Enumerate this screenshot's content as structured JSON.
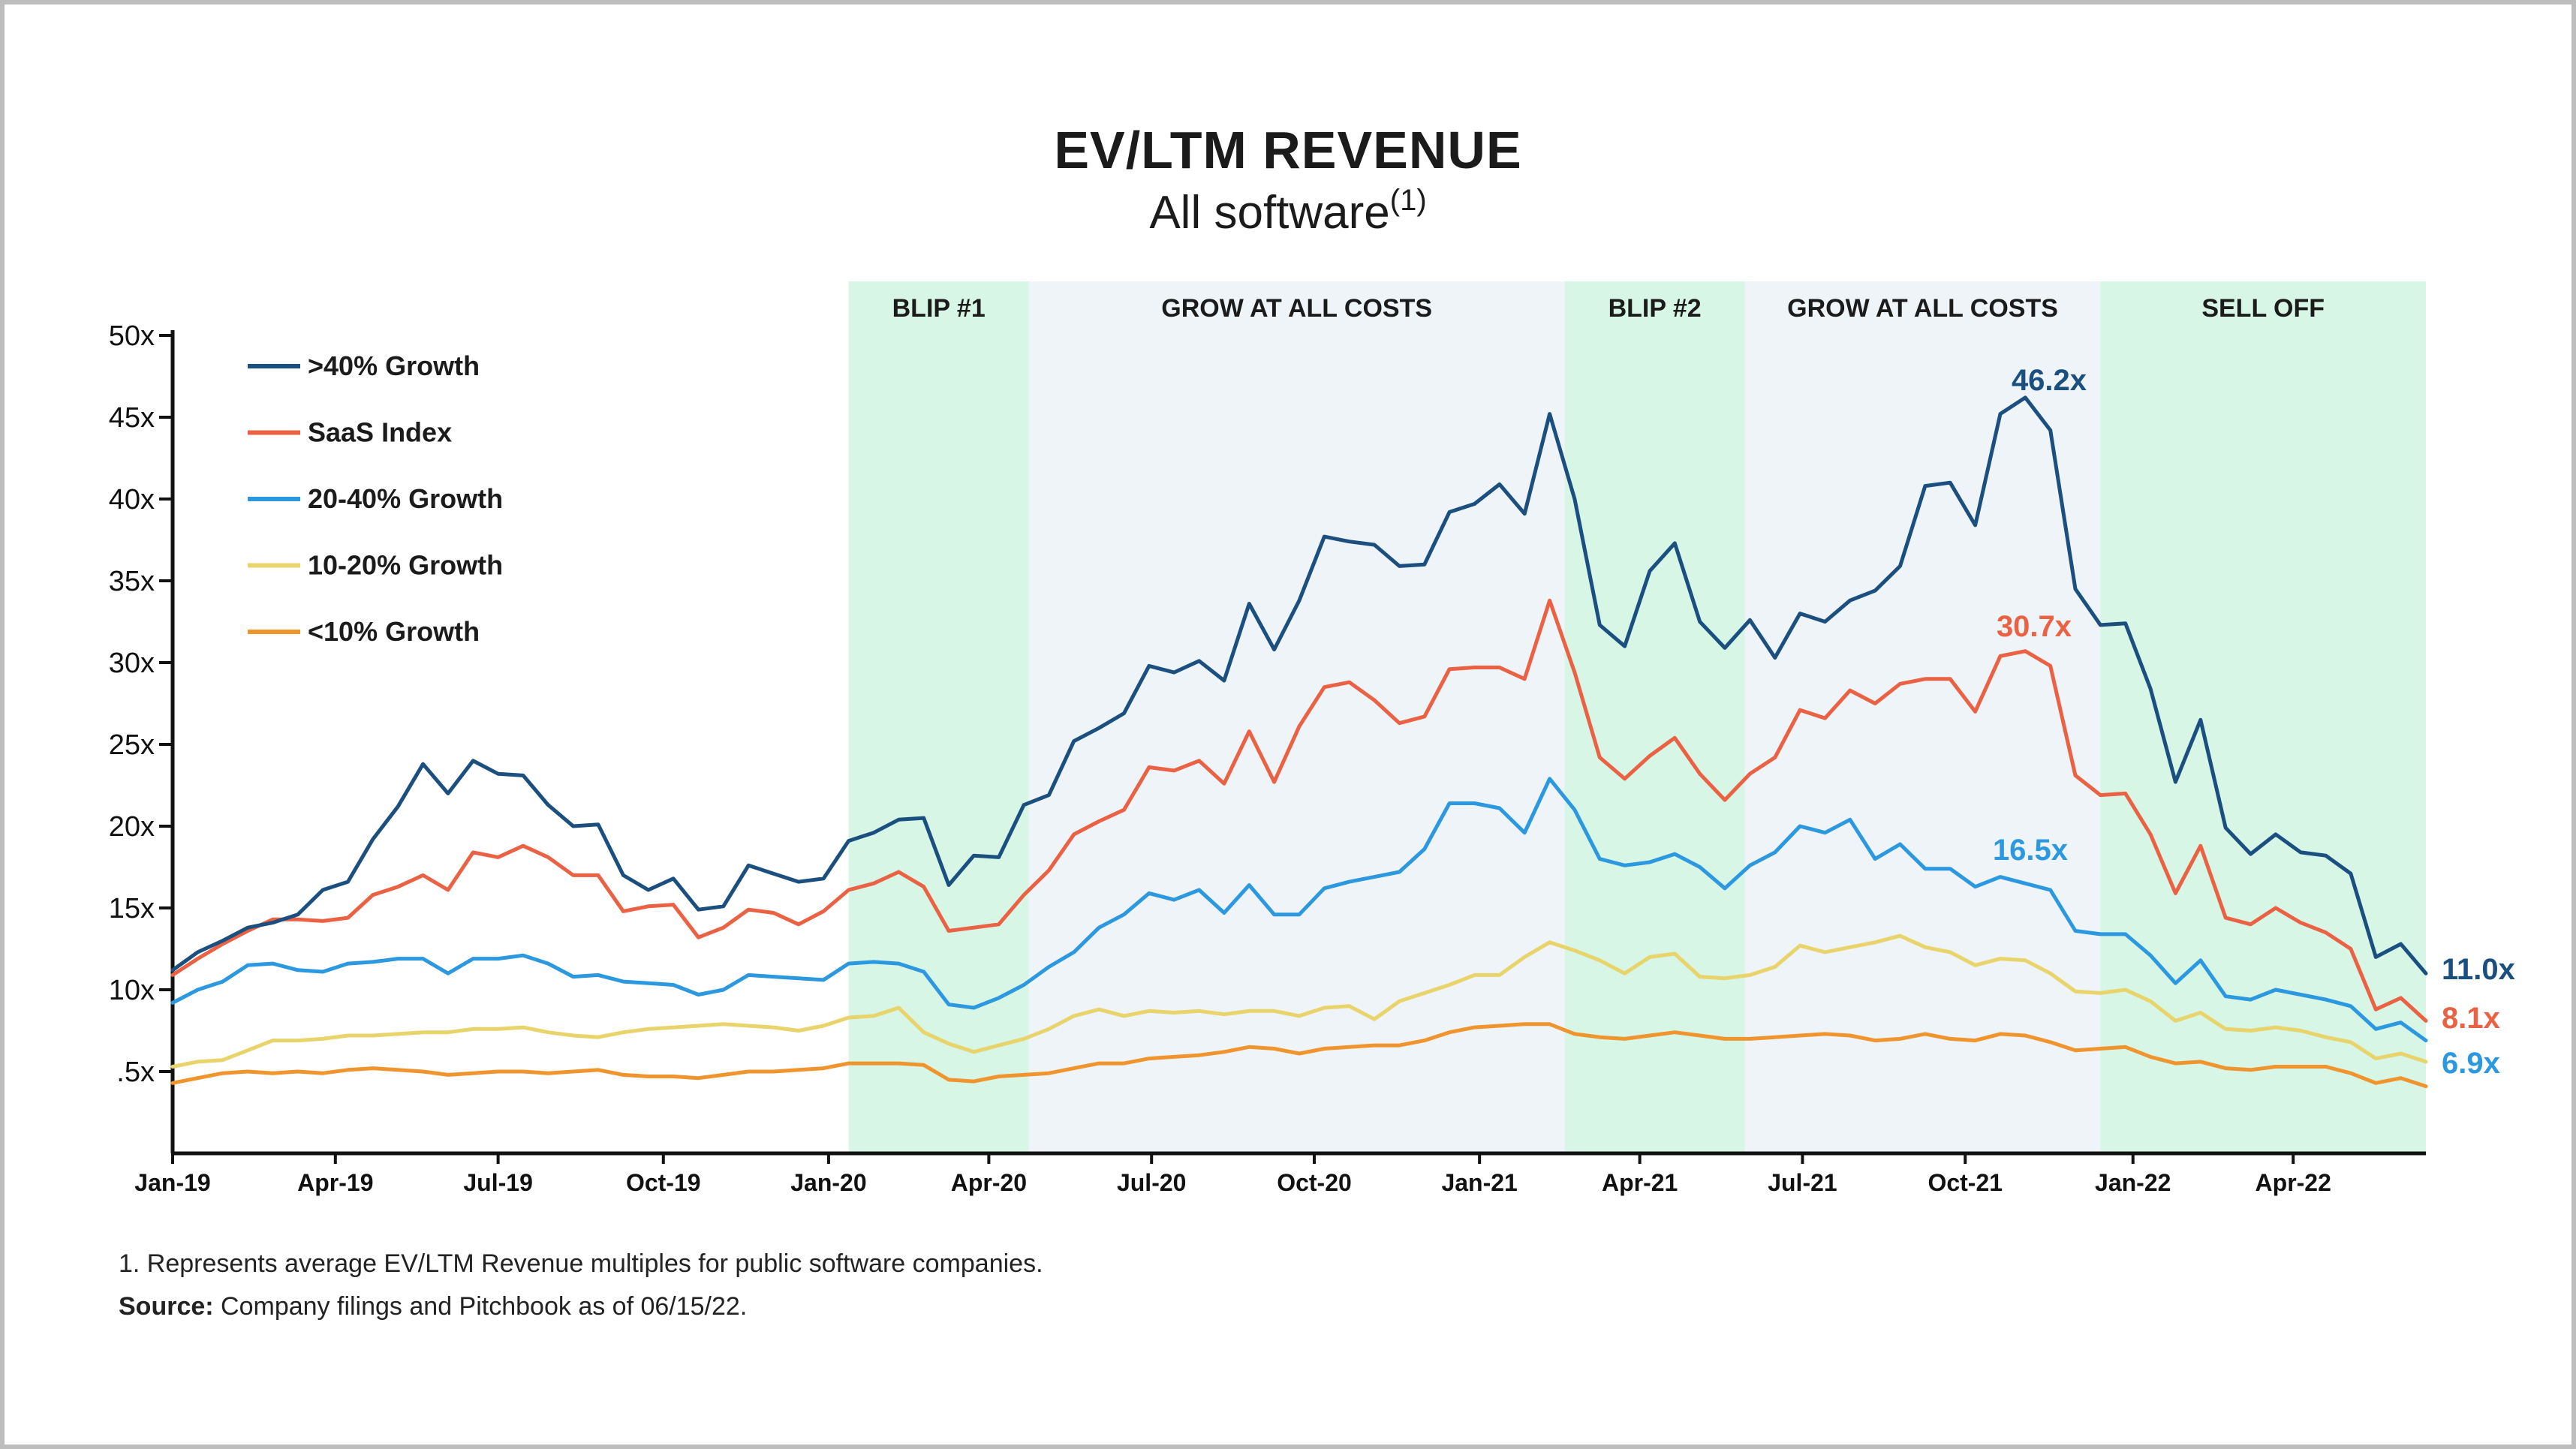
{
  "title": "EV/LTM REVENUE",
  "subtitle": "All software",
  "subtitle_sup": "(1)",
  "footnote": "1. Represents average EV/LTM Revenue multiples for public software companies.",
  "source_label": "Source:",
  "source_text": "Company filings and Pitchbook as of 06/15/22.",
  "chart_data": {
    "type": "line",
    "title": "EV/LTM REVENUE",
    "subtitle": "All software",
    "ylim": [
      0,
      50
    ],
    "y_ticks": [
      "50x",
      "45x",
      "40x",
      "35x",
      "30x",
      "25x",
      "20x",
      "15x",
      "10x",
      ".5x"
    ],
    "y_tick_values": [
      50,
      45,
      40,
      35,
      30,
      25,
      20,
      15,
      10,
      5
    ],
    "x_start": "2019-01-04",
    "x_interval": "weekly, every other week",
    "x_ticks": [
      {
        "label": "Jan-19",
        "index": 0
      },
      {
        "label": "Apr-19",
        "index": 6.5
      },
      {
        "label": "Jul-19",
        "index": 13
      },
      {
        "label": "Oct-19",
        "index": 19.6
      },
      {
        "label": "Jan-20",
        "index": 26.2
      },
      {
        "label": "Apr-20",
        "index": 32.6
      },
      {
        "label": "Jul-20",
        "index": 39.1
      },
      {
        "label": "Oct-20",
        "index": 45.6
      },
      {
        "label": "Jan-21",
        "index": 52.2
      },
      {
        "label": "Apr-21",
        "index": 58.6
      },
      {
        "label": "Jul-21",
        "index": 65.1
      },
      {
        "label": "Oct-21",
        "index": 71.6
      },
      {
        "label": "Jan-22",
        "index": 78.3
      },
      {
        "label": "Apr-22",
        "index": 84.7
      }
    ],
    "phases": [
      {
        "label": "BLIP #1",
        "start": 27.0,
        "end": 34.2,
        "color": "#d7f6e6"
      },
      {
        "label": "GROW AT ALL COSTS",
        "start": 34.2,
        "end": 55.6,
        "color": "#eef4f8"
      },
      {
        "label": "BLIP #2",
        "start": 55.6,
        "end": 62.8,
        "color": "#d7f6e6"
      },
      {
        "label": "GROW AT ALL COSTS",
        "start": 62.8,
        "end": 77.0,
        "color": "#eef4f8"
      },
      {
        "label": "SELL OFF",
        "start": 77.0,
        "end": 90.0,
        "color": "#d7f6e6"
      }
    ],
    "grid": false,
    "legend_position": "top-left",
    "series": [
      {
        "name": ">40% Growth",
        "color": "#1a4f7f",
        "end_label": "11.0x",
        "peak_label": "46.2x",
        "values": [
          11.2,
          12.3,
          13.0,
          13.8,
          14.1,
          14.6,
          16.1,
          16.6,
          19.2,
          21.2,
          23.8,
          22.0,
          24.0,
          23.2,
          23.1,
          21.3,
          20.0,
          20.1,
          17.0,
          16.1,
          16.8,
          14.9,
          15.1,
          17.6,
          17.1,
          16.6,
          16.8,
          19.1,
          19.6,
          20.4,
          20.5,
          16.4,
          18.2,
          18.1,
          21.3,
          21.9,
          25.2,
          26.0,
          26.9,
          29.8,
          29.4,
          30.1,
          28.9,
          33.6,
          30.8,
          33.8,
          37.7,
          37.4,
          37.2,
          35.9,
          36.0,
          39.2,
          39.7,
          40.9,
          39.1,
          45.2,
          40.0,
          32.3,
          31.0,
          35.6,
          37.3,
          32.5,
          30.9,
          32.6,
          30.3,
          33.0,
          32.5,
          33.8,
          34.4,
          35.9,
          40.8,
          41.0,
          38.4,
          45.2,
          46.2,
          44.2,
          34.5,
          32.3,
          32.4,
          28.4,
          22.7,
          26.5,
          19.9,
          18.3,
          19.5,
          18.4,
          18.2,
          17.1,
          12.0,
          12.8,
          11.0
        ]
      },
      {
        "name": "SaaS Index",
        "color": "#ea6243",
        "end_label": "8.1x",
        "peak_label": "30.7x",
        "values": [
          10.9,
          11.9,
          12.8,
          13.6,
          14.3,
          14.3,
          14.2,
          14.4,
          15.8,
          16.3,
          17.0,
          16.1,
          18.4,
          18.1,
          18.8,
          18.1,
          17.0,
          17.0,
          14.8,
          15.1,
          15.2,
          13.2,
          13.8,
          14.9,
          14.7,
          14.0,
          14.8,
          16.1,
          16.5,
          17.2,
          16.3,
          13.6,
          13.8,
          14.0,
          15.8,
          17.3,
          19.5,
          20.3,
          21.0,
          23.6,
          23.4,
          24.0,
          22.6,
          25.8,
          22.7,
          26.1,
          28.5,
          28.8,
          27.7,
          26.3,
          26.7,
          29.6,
          29.7,
          29.7,
          29.0,
          33.8,
          29.4,
          24.2,
          22.9,
          24.3,
          25.4,
          23.2,
          21.6,
          23.2,
          24.2,
          27.1,
          26.6,
          28.3,
          27.5,
          28.7,
          29.0,
          29.0,
          27.0,
          30.4,
          30.7,
          29.8,
          23.1,
          21.9,
          22.0,
          19.5,
          15.9,
          18.8,
          14.4,
          14.0,
          15.0,
          14.1,
          13.5,
          12.5,
          8.8,
          9.5,
          8.1
        ]
      },
      {
        "name": "20-40% Growth",
        "color": "#2c98e0",
        "end_label": "6.9x",
        "mid_label": "16.5x",
        "values": [
          9.2,
          10.0,
          10.5,
          11.5,
          11.6,
          11.2,
          11.1,
          11.6,
          11.7,
          11.9,
          11.9,
          11.0,
          11.9,
          11.9,
          12.1,
          11.6,
          10.8,
          10.9,
          10.5,
          10.4,
          10.3,
          9.7,
          10.0,
          10.9,
          10.8,
          10.7,
          10.6,
          11.6,
          11.7,
          11.6,
          11.1,
          9.1,
          8.9,
          9.5,
          10.3,
          11.4,
          12.3,
          13.8,
          14.6,
          15.9,
          15.5,
          16.1,
          14.7,
          16.4,
          14.6,
          14.6,
          16.2,
          16.6,
          16.9,
          17.2,
          18.6,
          21.4,
          21.4,
          21.1,
          19.6,
          22.9,
          21.0,
          18.0,
          17.6,
          17.8,
          18.3,
          17.5,
          16.2,
          17.6,
          18.4,
          20.0,
          19.6,
          20.4,
          18.0,
          18.9,
          17.4,
          17.4,
          16.3,
          16.9,
          16.5,
          16.1,
          13.6,
          13.4,
          13.4,
          12.1,
          10.4,
          11.8,
          9.6,
          9.4,
          10.0,
          9.7,
          9.4,
          9.0,
          7.6,
          8.0,
          6.9
        ]
      },
      {
        "name": "10-20% Growth",
        "color": "#e8d46a",
        "values": [
          5.3,
          5.6,
          5.7,
          6.3,
          6.9,
          6.9,
          7.0,
          7.2,
          7.2,
          7.3,
          7.4,
          7.4,
          7.6,
          7.6,
          7.7,
          7.4,
          7.2,
          7.1,
          7.4,
          7.6,
          7.7,
          7.8,
          7.9,
          7.8,
          7.7,
          7.5,
          7.8,
          8.3,
          8.4,
          8.9,
          7.4,
          6.7,
          6.2,
          6.6,
          7.0,
          7.6,
          8.4,
          8.8,
          8.4,
          8.7,
          8.6,
          8.7,
          8.5,
          8.7,
          8.7,
          8.4,
          8.9,
          9.0,
          8.2,
          9.3,
          9.8,
          10.3,
          10.9,
          10.9,
          12.0,
          12.9,
          12.4,
          11.8,
          11.0,
          12.0,
          12.2,
          10.8,
          10.7,
          10.9,
          11.4,
          12.7,
          12.3,
          12.6,
          12.9,
          13.3,
          12.6,
          12.3,
          11.5,
          11.9,
          11.8,
          11.0,
          9.9,
          9.8,
          10.0,
          9.3,
          8.1,
          8.6,
          7.6,
          7.5,
          7.7,
          7.5,
          7.1,
          6.8,
          5.8,
          6.1,
          5.6
        ]
      },
      {
        "name": "<10% Growth",
        "color": "#f0952e",
        "values": [
          4.3,
          4.6,
          4.9,
          5.0,
          4.9,
          5.0,
          4.9,
          5.1,
          5.2,
          5.1,
          5.0,
          4.8,
          4.9,
          5.0,
          5.0,
          4.9,
          5.0,
          5.1,
          4.8,
          4.7,
          4.7,
          4.6,
          4.8,
          5.0,
          5.0,
          5.1,
          5.2,
          5.5,
          5.5,
          5.5,
          5.4,
          4.5,
          4.4,
          4.7,
          4.8,
          4.9,
          5.2,
          5.5,
          5.5,
          5.8,
          5.9,
          6.0,
          6.2,
          6.5,
          6.4,
          6.1,
          6.4,
          6.5,
          6.6,
          6.6,
          6.9,
          7.4,
          7.7,
          7.8,
          7.9,
          7.9,
          7.3,
          7.1,
          7.0,
          7.2,
          7.4,
          7.2,
          7.0,
          7.0,
          7.1,
          7.2,
          7.3,
          7.2,
          6.9,
          7.0,
          7.3,
          7.0,
          6.9,
          7.3,
          7.2,
          6.8,
          6.3,
          6.4,
          6.5,
          5.9,
          5.5,
          5.6,
          5.2,
          5.1,
          5.3,
          5.3,
          5.3,
          4.9,
          4.3,
          4.6,
          4.1
        ]
      }
    ]
  }
}
